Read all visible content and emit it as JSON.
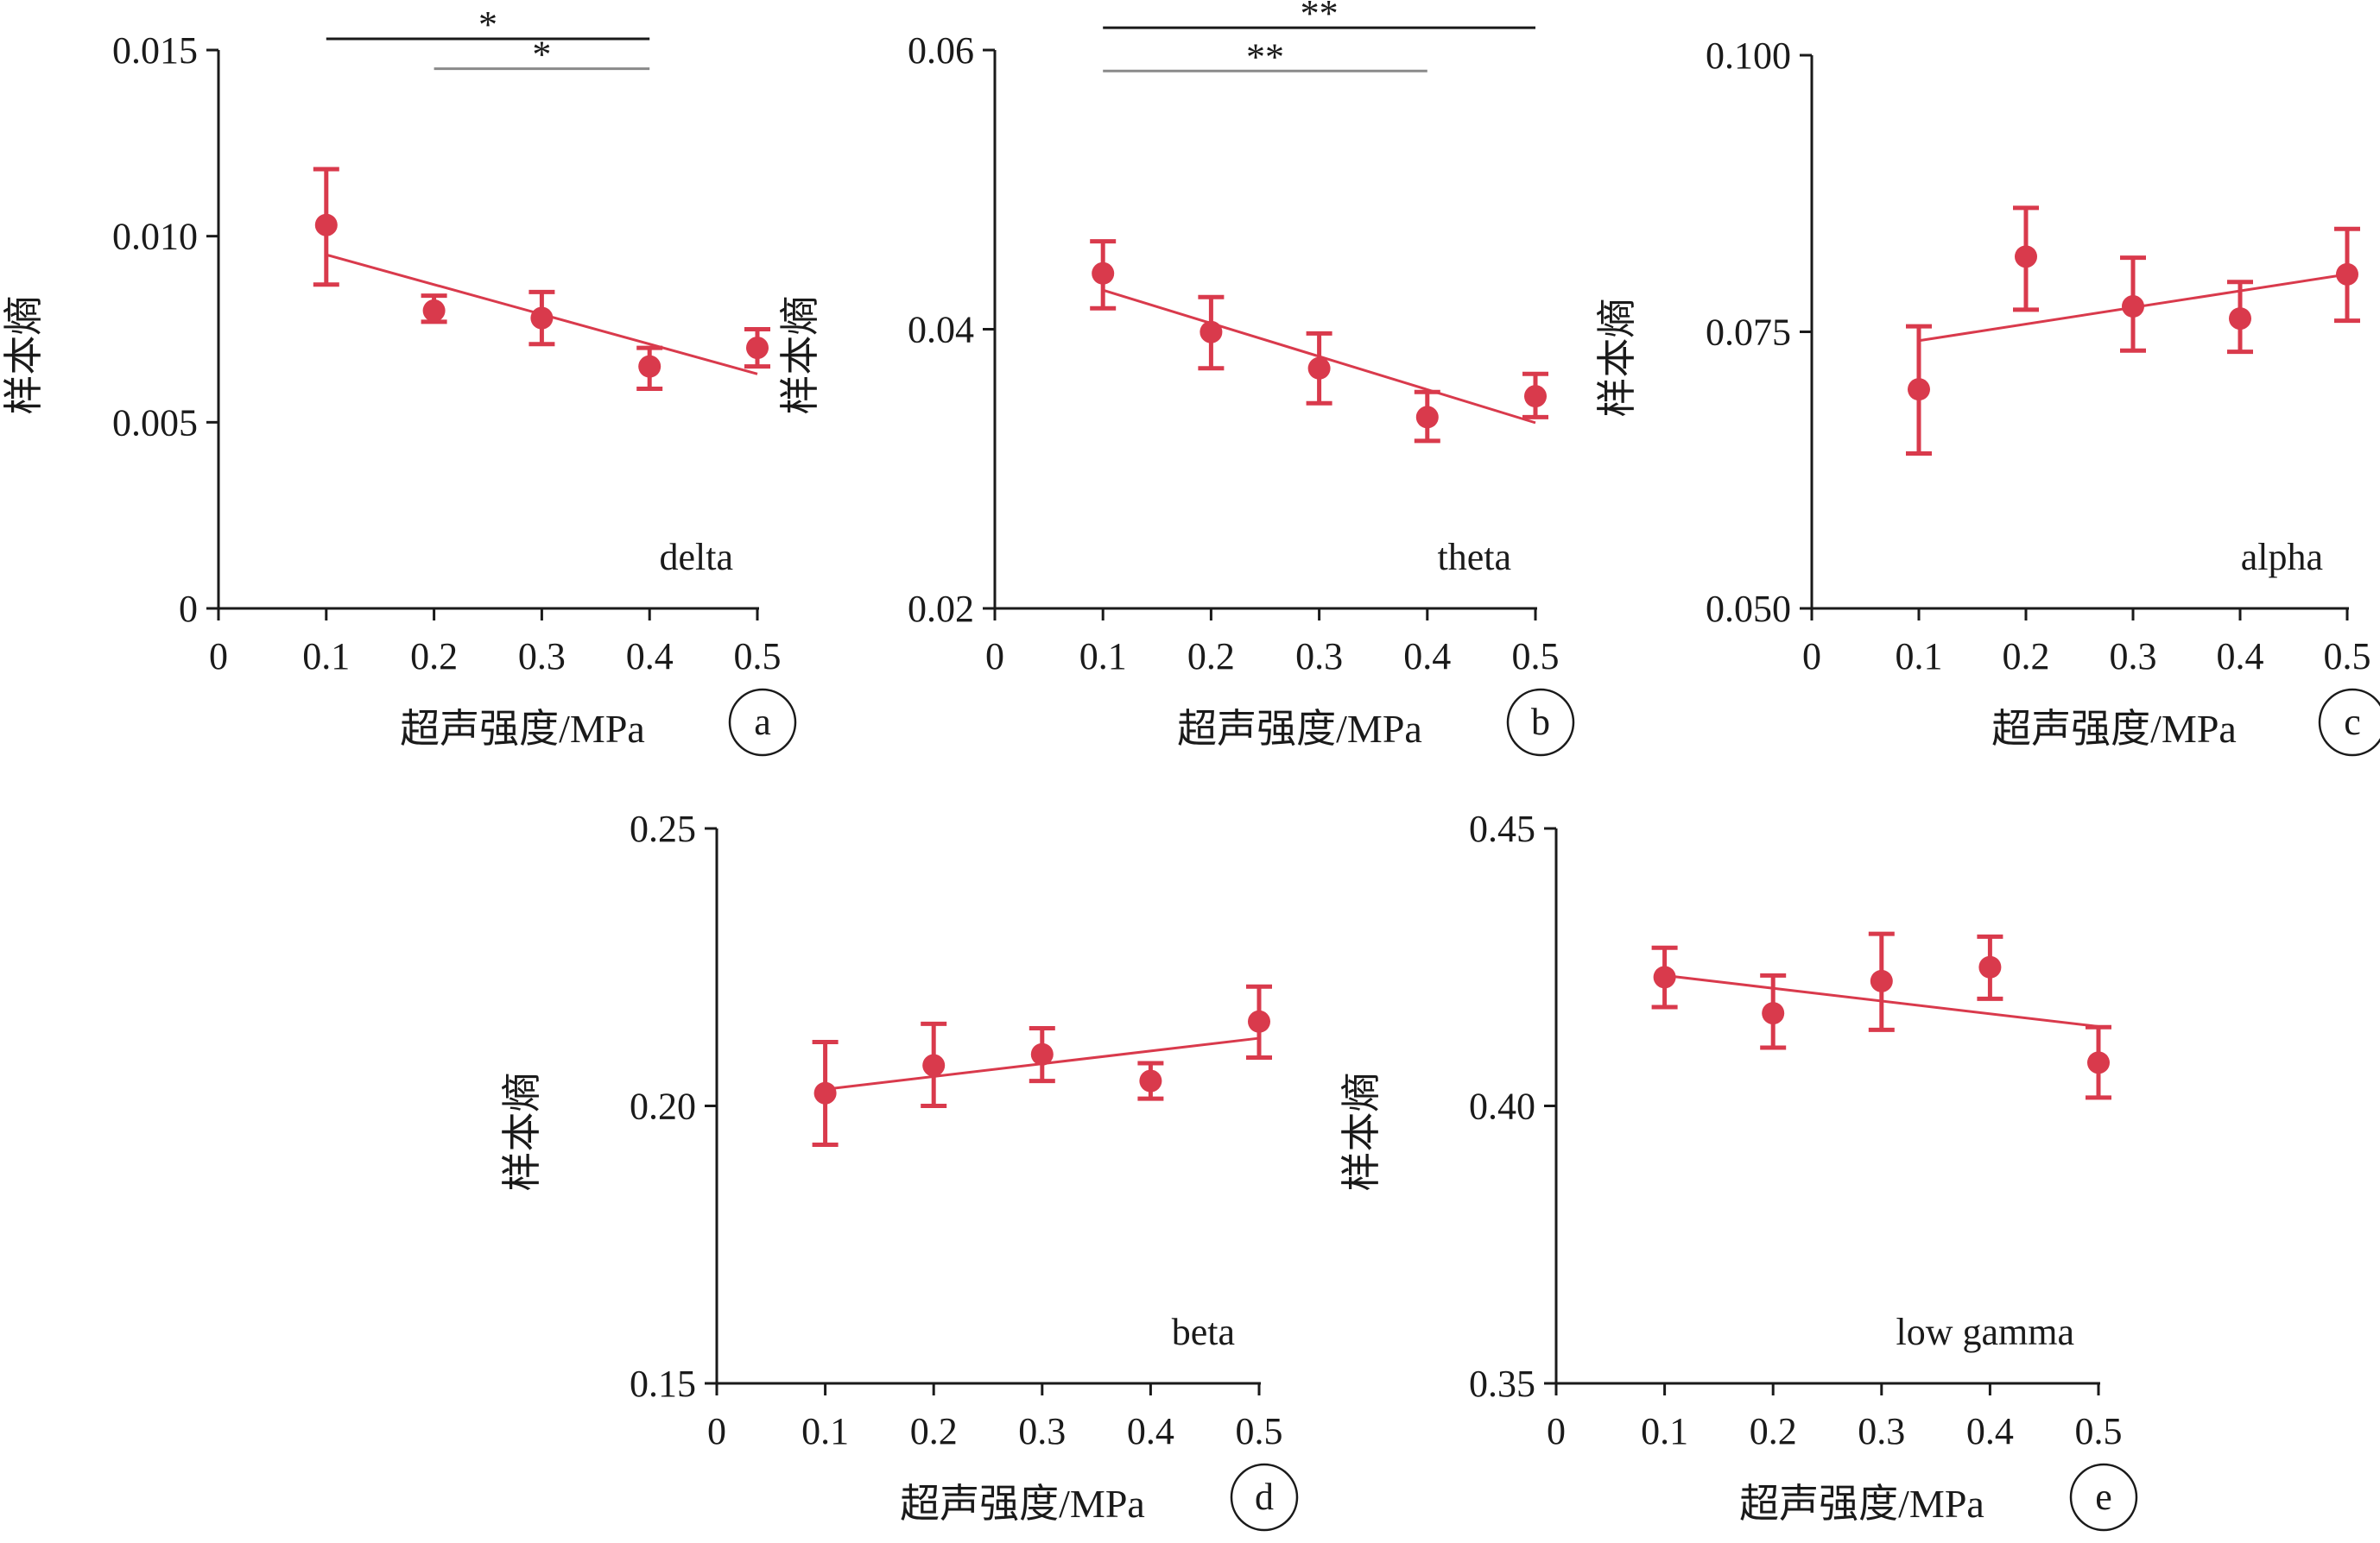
{
  "colors": {
    "series": "#d93a4c",
    "axis": "#1a1a1a",
    "bracket_primary": "#1a1a1a",
    "bracket_secondary": "#8a8a8a",
    "background": "#ffffff"
  },
  "chart_data": [
    {
      "id": "a",
      "type": "scatter",
      "band_label": "delta",
      "panel_letter": "a",
      "xlabel": "超声强度/MPa",
      "ylabel": "样本熵",
      "xlim": [
        0,
        0.5
      ],
      "ylim": [
        0,
        0.015
      ],
      "xticks": [
        0,
        0.1,
        0.2,
        0.3,
        0.4,
        0.5
      ],
      "xtick_labels": [
        "0",
        "0.1",
        "0.2",
        "0.3",
        "0.4",
        "0.5"
      ],
      "yticks": [
        0,
        0.005,
        0.01,
        0.015
      ],
      "ytick_labels": [
        "0",
        "0.005",
        "0.010",
        "0.015"
      ],
      "points": [
        {
          "x": 0.1,
          "y": 0.0103,
          "err_low": 0.0087,
          "err_high": 0.0118
        },
        {
          "x": 0.2,
          "y": 0.008,
          "err_low": 0.0077,
          "err_high": 0.0084
        },
        {
          "x": 0.3,
          "y": 0.0078,
          "err_low": 0.0071,
          "err_high": 0.0085
        },
        {
          "x": 0.4,
          "y": 0.0065,
          "err_low": 0.0059,
          "err_high": 0.007
        },
        {
          "x": 0.5,
          "y": 0.007,
          "err_low": 0.0065,
          "err_high": 0.0075
        }
      ],
      "trend": {
        "x": [
          0.1,
          0.5
        ],
        "y": [
          0.0095,
          0.0063
        ]
      },
      "significance": [
        {
          "x1": 0.1,
          "x2": 0.4,
          "label": "*",
          "style": "primary",
          "y": 0.0153
        },
        {
          "x1": 0.2,
          "x2": 0.4,
          "label": "*",
          "style": "secondary",
          "y": 0.0145
        }
      ]
    },
    {
      "id": "b",
      "type": "scatter",
      "band_label": "theta",
      "panel_letter": "b",
      "xlabel": "超声强度/MPa",
      "ylabel": "样本熵",
      "xlim": [
        0,
        0.5
      ],
      "ylim": [
        0.02,
        0.06
      ],
      "xticks": [
        0,
        0.1,
        0.2,
        0.3,
        0.4,
        0.5
      ],
      "xtick_labels": [
        "0",
        "0.1",
        "0.2",
        "0.3",
        "0.4",
        "0.5"
      ],
      "yticks": [
        0.02,
        0.04,
        0.06
      ],
      "ytick_labels": [
        "0.02",
        "0.04",
        "0.06"
      ],
      "points": [
        {
          "x": 0.1,
          "y": 0.044,
          "err_low": 0.0415,
          "err_high": 0.0463
        },
        {
          "x": 0.2,
          "y": 0.0398,
          "err_low": 0.0372,
          "err_high": 0.0423
        },
        {
          "x": 0.3,
          "y": 0.0372,
          "err_low": 0.0347,
          "err_high": 0.0397
        },
        {
          "x": 0.4,
          "y": 0.0337,
          "err_low": 0.032,
          "err_high": 0.0355
        },
        {
          "x": 0.5,
          "y": 0.0352,
          "err_low": 0.0337,
          "err_high": 0.0368
        }
      ],
      "trend": {
        "x": [
          0.1,
          0.5
        ],
        "y": [
          0.0428,
          0.0333
        ]
      },
      "significance": [
        {
          "x1": 0.1,
          "x2": 0.5,
          "label": "**",
          "style": "primary",
          "y": 0.0616
        },
        {
          "x1": 0.1,
          "x2": 0.4,
          "label": "**",
          "style": "secondary",
          "y": 0.0585
        }
      ]
    },
    {
      "id": "c",
      "type": "scatter",
      "band_label": "alpha",
      "panel_letter": "c",
      "xlabel": "超声强度/MPa",
      "ylabel": "样本熵",
      "xlim": [
        0,
        0.5
      ],
      "ylim": [
        0.05,
        0.1
      ],
      "xticks": [
        0,
        0.1,
        0.2,
        0.3,
        0.4,
        0.5
      ],
      "xtick_labels": [
        "0",
        "0.1",
        "0.2",
        "0.3",
        "0.4",
        "0.5"
      ],
      "yticks": [
        0.05,
        0.075,
        0.1
      ],
      "ytick_labels": [
        "0.050",
        "0.075",
        "0.100"
      ],
      "points": [
        {
          "x": 0.1,
          "y": 0.0698,
          "err_low": 0.064,
          "err_high": 0.0755
        },
        {
          "x": 0.2,
          "y": 0.0818,
          "err_low": 0.077,
          "err_high": 0.0862
        },
        {
          "x": 0.3,
          "y": 0.0773,
          "err_low": 0.0733,
          "err_high": 0.0817
        },
        {
          "x": 0.4,
          "y": 0.0762,
          "err_low": 0.0732,
          "err_high": 0.0795
        },
        {
          "x": 0.5,
          "y": 0.0802,
          "err_low": 0.076,
          "err_high": 0.0843
        }
      ],
      "trend": {
        "x": [
          0.1,
          0.5
        ],
        "y": [
          0.0742,
          0.0802
        ]
      },
      "significance": []
    },
    {
      "id": "d",
      "type": "scatter",
      "band_label": "beta",
      "panel_letter": "d",
      "xlabel": "超声强度/MPa",
      "ylabel": "样本熵",
      "xlim": [
        0,
        0.5
      ],
      "ylim": [
        0.15,
        0.25
      ],
      "xticks": [
        0,
        0.1,
        0.2,
        0.3,
        0.4,
        0.5
      ],
      "xtick_labels": [
        "0",
        "0.1",
        "0.2",
        "0.3",
        "0.4",
        "0.5"
      ],
      "yticks": [
        0.15,
        0.2,
        0.25
      ],
      "ytick_labels": [
        "0.15",
        "0.20",
        "0.25"
      ],
      "points": [
        {
          "x": 0.1,
          "y": 0.2023,
          "err_low": 0.193,
          "err_high": 0.2115
        },
        {
          "x": 0.2,
          "y": 0.2073,
          "err_low": 0.2,
          "err_high": 0.2148
        },
        {
          "x": 0.3,
          "y": 0.2093,
          "err_low": 0.2045,
          "err_high": 0.214
        },
        {
          "x": 0.4,
          "y": 0.2045,
          "err_low": 0.2013,
          "err_high": 0.2077
        },
        {
          "x": 0.5,
          "y": 0.2152,
          "err_low": 0.2087,
          "err_high": 0.2215
        }
      ],
      "trend": {
        "x": [
          0.1,
          0.5
        ],
        "y": [
          0.203,
          0.2122
        ]
      },
      "significance": []
    },
    {
      "id": "e",
      "type": "scatter",
      "band_label": "low gamma",
      "panel_letter": "e",
      "xlabel": "超声强度/MPa",
      "ylabel": "样本熵",
      "xlim": [
        0,
        0.5
      ],
      "ylim": [
        0.35,
        0.45
      ],
      "xticks": [
        0,
        0.1,
        0.2,
        0.3,
        0.4,
        0.5
      ],
      "xtick_labels": [
        "0",
        "0.1",
        "0.2",
        "0.3",
        "0.4",
        "0.5"
      ],
      "yticks": [
        0.35,
        0.4,
        0.45
      ],
      "ytick_labels": [
        "0.35",
        "0.40",
        "0.45"
      ],
      "points": [
        {
          "x": 0.1,
          "y": 0.4232,
          "err_low": 0.4178,
          "err_high": 0.4285
        },
        {
          "x": 0.2,
          "y": 0.4167,
          "err_low": 0.4105,
          "err_high": 0.4235
        },
        {
          "x": 0.3,
          "y": 0.4225,
          "err_low": 0.4137,
          "err_high": 0.431
        },
        {
          "x": 0.4,
          "y": 0.425,
          "err_low": 0.4193,
          "err_high": 0.4305
        },
        {
          "x": 0.5,
          "y": 0.4078,
          "err_low": 0.4015,
          "err_high": 0.4142
        }
      ],
      "trend": {
        "x": [
          0.1,
          0.5
        ],
        "y": [
          0.4235,
          0.4143
        ]
      },
      "significance": []
    }
  ]
}
